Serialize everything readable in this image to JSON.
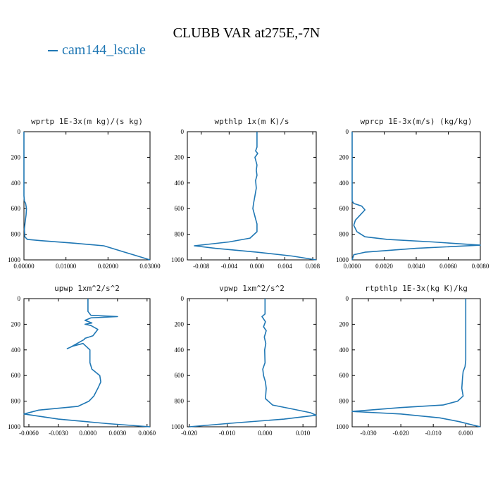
{
  "page": {
    "title": "CLUBB VAR at275E,-7N",
    "legend_label": "cam144_lscale",
    "line_color": "#1f77b4"
  },
  "chart_data": [
    {
      "type": "line",
      "title": "wprtp  1E-3x(m kg)/(s kg)",
      "xlim": [
        0.0,
        0.03
      ],
      "ylim": [
        1000,
        0
      ],
      "xticks": [
        0.0,
        0.01,
        0.02,
        0.03
      ],
      "xticklabels": [
        "0.00000",
        "0.01000",
        "0.02000",
        "0.03000"
      ],
      "yticks": [
        0,
        200,
        400,
        600,
        800,
        1000
      ],
      "yticklabels": [
        "0",
        "200",
        "400",
        "600",
        "800",
        "1000"
      ],
      "series": [
        {
          "name": "cam144_lscale",
          "x": [
            0.0,
            0.0,
            0.0,
            0.0,
            0.0001,
            0.0004,
            0.0006,
            0.0005,
            0.0003,
            0.0001,
            0.0002,
            0.0008,
            0.004,
            0.012,
            0.019,
            0.021,
            0.024,
            0.027,
            0.03
          ],
          "y": [
            0,
            100,
            300,
            500,
            540,
            560,
            600,
            650,
            700,
            760,
            820,
            840,
            850,
            870,
            890,
            910,
            940,
            970,
            1000
          ]
        }
      ]
    },
    {
      "type": "line",
      "title": "wpthlp  1x(m K)/s",
      "xlim": [
        -0.01,
        0.0085
      ],
      "ylim": [
        1000,
        0
      ],
      "xticks": [
        -0.008,
        -0.004,
        0.0,
        0.004,
        0.008
      ],
      "xticklabels": [
        "-0.008",
        "-0.004",
        "0.000",
        "0.004",
        "0.008"
      ],
      "yticks": [
        0,
        200,
        400,
        600,
        800,
        1000
      ],
      "yticklabels": [
        "0",
        "200",
        "400",
        "600",
        "800",
        "1000"
      ],
      "series": [
        {
          "name": "cam144_lscale",
          "x": [
            0.0,
            0.0,
            -0.0002,
            0.0001,
            -0.0003,
            0.0,
            -0.0001,
            0.0,
            -0.0002,
            -0.0001,
            -0.0003,
            -0.0005,
            -0.0006,
            -0.0004,
            -0.0002,
            0.0,
            0.0,
            -0.001,
            -0.004,
            -0.009,
            -0.006,
            0.0,
            0.005,
            0.0085
          ],
          "y": [
            0,
            120,
            150,
            170,
            200,
            260,
            300,
            340,
            380,
            440,
            500,
            560,
            600,
            640,
            680,
            720,
            780,
            830,
            860,
            890,
            910,
            940,
            970,
            1000
          ]
        }
      ]
    },
    {
      "type": "line",
      "title": "wprcp  1E-3x(m/s) (kg/kg)",
      "xlim": [
        0.0,
        0.008
      ],
      "ylim": [
        1000,
        0
      ],
      "xticks": [
        0.0,
        0.002,
        0.004,
        0.006,
        0.008
      ],
      "xticklabels": [
        "0.0000",
        "0.0020",
        "0.0040",
        "0.0060",
        "0.0080"
      ],
      "yticks": [
        0,
        200,
        400,
        600,
        800,
        1000
      ],
      "yticklabels": [
        "0",
        "200",
        "400",
        "600",
        "800",
        "1000"
      ],
      "series": [
        {
          "name": "cam144_lscale",
          "x": [
            0.0,
            0.0,
            0.0,
            0.0,
            0.0001,
            0.0006,
            0.0008,
            0.0005,
            0.0002,
            0.0001,
            0.0003,
            0.0008,
            0.0022,
            0.005,
            0.008,
            0.004,
            0.0008,
            0.0001,
            0.0
          ],
          "y": [
            0,
            300,
            500,
            540,
            560,
            580,
            610,
            650,
            690,
            730,
            780,
            820,
            840,
            860,
            885,
            910,
            940,
            960,
            1000
          ]
        }
      ]
    },
    {
      "type": "line",
      "title": "upwp  1xm^2/s^2",
      "xlim": [
        -0.0065,
        0.0063
      ],
      "ylim": [
        1000,
        0
      ],
      "xticks": [
        -0.006,
        -0.003,
        0.0,
        0.003,
        0.006
      ],
      "xticklabels": [
        "-0.0060",
        "-0.0030",
        "0.0000",
        "0.0030",
        "0.0060"
      ],
      "yticks": [
        0,
        200,
        400,
        600,
        800,
        1000
      ],
      "yticklabels": [
        "0",
        "200",
        "400",
        "600",
        "800",
        "1000"
      ],
      "series": [
        {
          "name": "cam144_lscale",
          "x": [
            0.0,
            0.0,
            0.0003,
            0.003,
            0.0003,
            -0.0003,
            0.0004,
            -0.0003,
            0.0003,
            0.001,
            0.0005,
            -0.0003,
            -0.0004,
            -0.0011,
            -0.0018,
            -0.0021,
            -0.0015,
            -0.0005,
            0.0002,
            0.0002,
            0.0004,
            0.0012,
            0.0013,
            0.001,
            0.0006,
            0.0001,
            -0.001,
            -0.005,
            -0.0065,
            -0.003,
            0.002,
            0.0063
          ],
          "y": [
            0,
            100,
            130,
            140,
            150,
            170,
            190,
            200,
            210,
            240,
            290,
            310,
            320,
            350,
            380,
            390,
            370,
            350,
            400,
            500,
            550,
            600,
            650,
            700,
            760,
            800,
            840,
            870,
            900,
            940,
            975,
            1000
          ]
        }
      ]
    },
    {
      "type": "line",
      "title": "vpwp  1xm^2/s^2",
      "xlim": [
        -0.0205,
        0.0135
      ],
      "ylim": [
        1000,
        0
      ],
      "xticks": [
        -0.02,
        -0.01,
        0.0,
        0.01
      ],
      "xticklabels": [
        "-0.020",
        "-0.010",
        "0.000",
        "0.010"
      ],
      "yticks": [
        0,
        200,
        400,
        600,
        800,
        1000
      ],
      "yticklabels": [
        "0",
        "200",
        "400",
        "600",
        "800",
        "1000"
      ],
      "series": [
        {
          "name": "cam144_lscale",
          "x": [
            0.0,
            0.0,
            -0.0008,
            0.0001,
            -0.0004,
            0.0003,
            -0.0002,
            0.0002,
            -0.0001,
            0.0,
            -0.0006,
            -0.0004,
            0.0001,
            0.0003,
            0.0001,
            0.002,
            0.007,
            0.012,
            0.0135,
            0.005,
            -0.008,
            -0.02
          ],
          "y": [
            0,
            120,
            140,
            180,
            220,
            250,
            300,
            350,
            400,
            500,
            550,
            600,
            650,
            700,
            780,
            830,
            860,
            890,
            910,
            940,
            970,
            1000
          ]
        }
      ]
    },
    {
      "type": "line",
      "title": "rtpthlp  1E-3x(kg K)/kg",
      "xlim": [
        -0.035,
        0.0045
      ],
      "ylim": [
        1000,
        0
      ],
      "xticks": [
        -0.03,
        -0.02,
        -0.01,
        0.0
      ],
      "xticklabels": [
        "-0.030",
        "-0.020",
        "-0.010",
        "0.000"
      ],
      "yticks": [
        0,
        200,
        400,
        600,
        800,
        1000
      ],
      "yticklabels": [
        "0",
        "200",
        "400",
        "600",
        "800",
        "1000"
      ],
      "series": [
        {
          "name": "cam144_lscale",
          "x": [
            0.0,
            0.0,
            -0.0002,
            -0.0008,
            -0.001,
            -0.0012,
            -0.0008,
            -0.0025,
            -0.007,
            -0.02,
            -0.035,
            -0.02,
            -0.008,
            -0.002,
            0.002,
            0.0045
          ],
          "y": [
            0,
            480,
            530,
            570,
            620,
            700,
            760,
            800,
            830,
            850,
            880,
            900,
            930,
            960,
            985,
            1000
          ]
        }
      ]
    }
  ]
}
